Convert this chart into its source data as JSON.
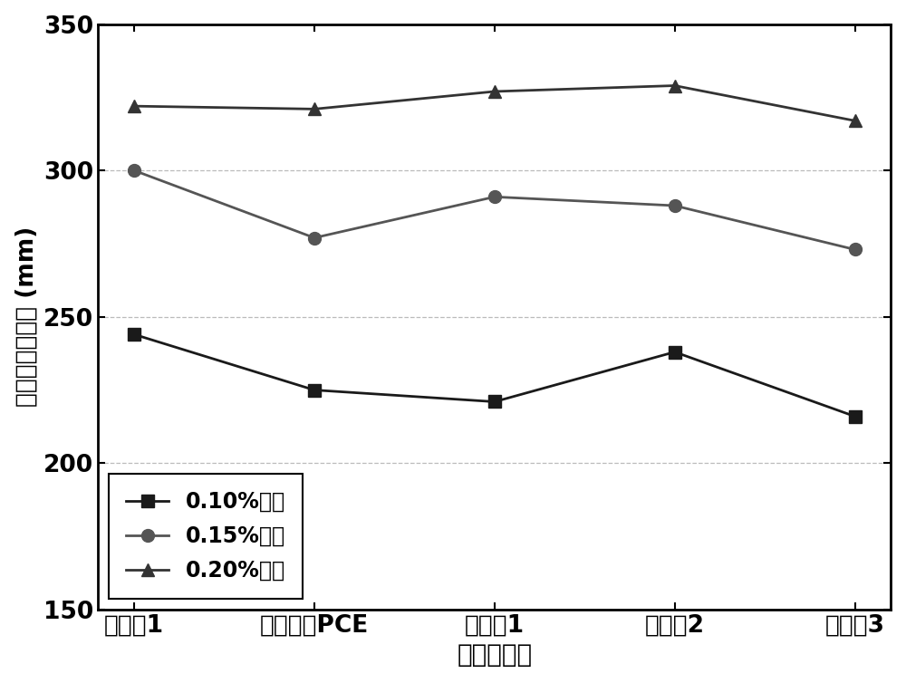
{
  "categories": [
    "对比例1",
    "市售普通PCE",
    "实施例1",
    "实施例2",
    "实施例3"
  ],
  "series": [
    {
      "label": "0.10%收量",
      "values": [
        244,
        225,
        221,
        238,
        216
      ],
      "marker": "s",
      "color": "#1a1a1a",
      "linewidth": 2.0,
      "markersize": 10
    },
    {
      "label": "0.15%收量",
      "values": [
        300,
        277,
        291,
        288,
        273
      ],
      "marker": "o",
      "color": "#555555",
      "linewidth": 2.0,
      "markersize": 10
    },
    {
      "label": "0.20%收量",
      "values": [
        322,
        321,
        327,
        329,
        317
      ],
      "marker": "^",
      "color": "#333333",
      "linewidth": 2.0,
      "markersize": 10
    }
  ],
  "xlabel": "减水剂种类",
  "ylabel_chinese": "水泥净浆流动度",
  "ylabel_unit": "(mm)",
  "ylim": [
    150,
    350
  ],
  "yticks": [
    150,
    200,
    250,
    300,
    350
  ],
  "legend_loc": "lower left",
  "background_color": "#ffffff",
  "xlabel_fontsize": 20,
  "ylabel_fontsize": 19,
  "tick_fontsize": 19,
  "legend_fontsize": 17
}
